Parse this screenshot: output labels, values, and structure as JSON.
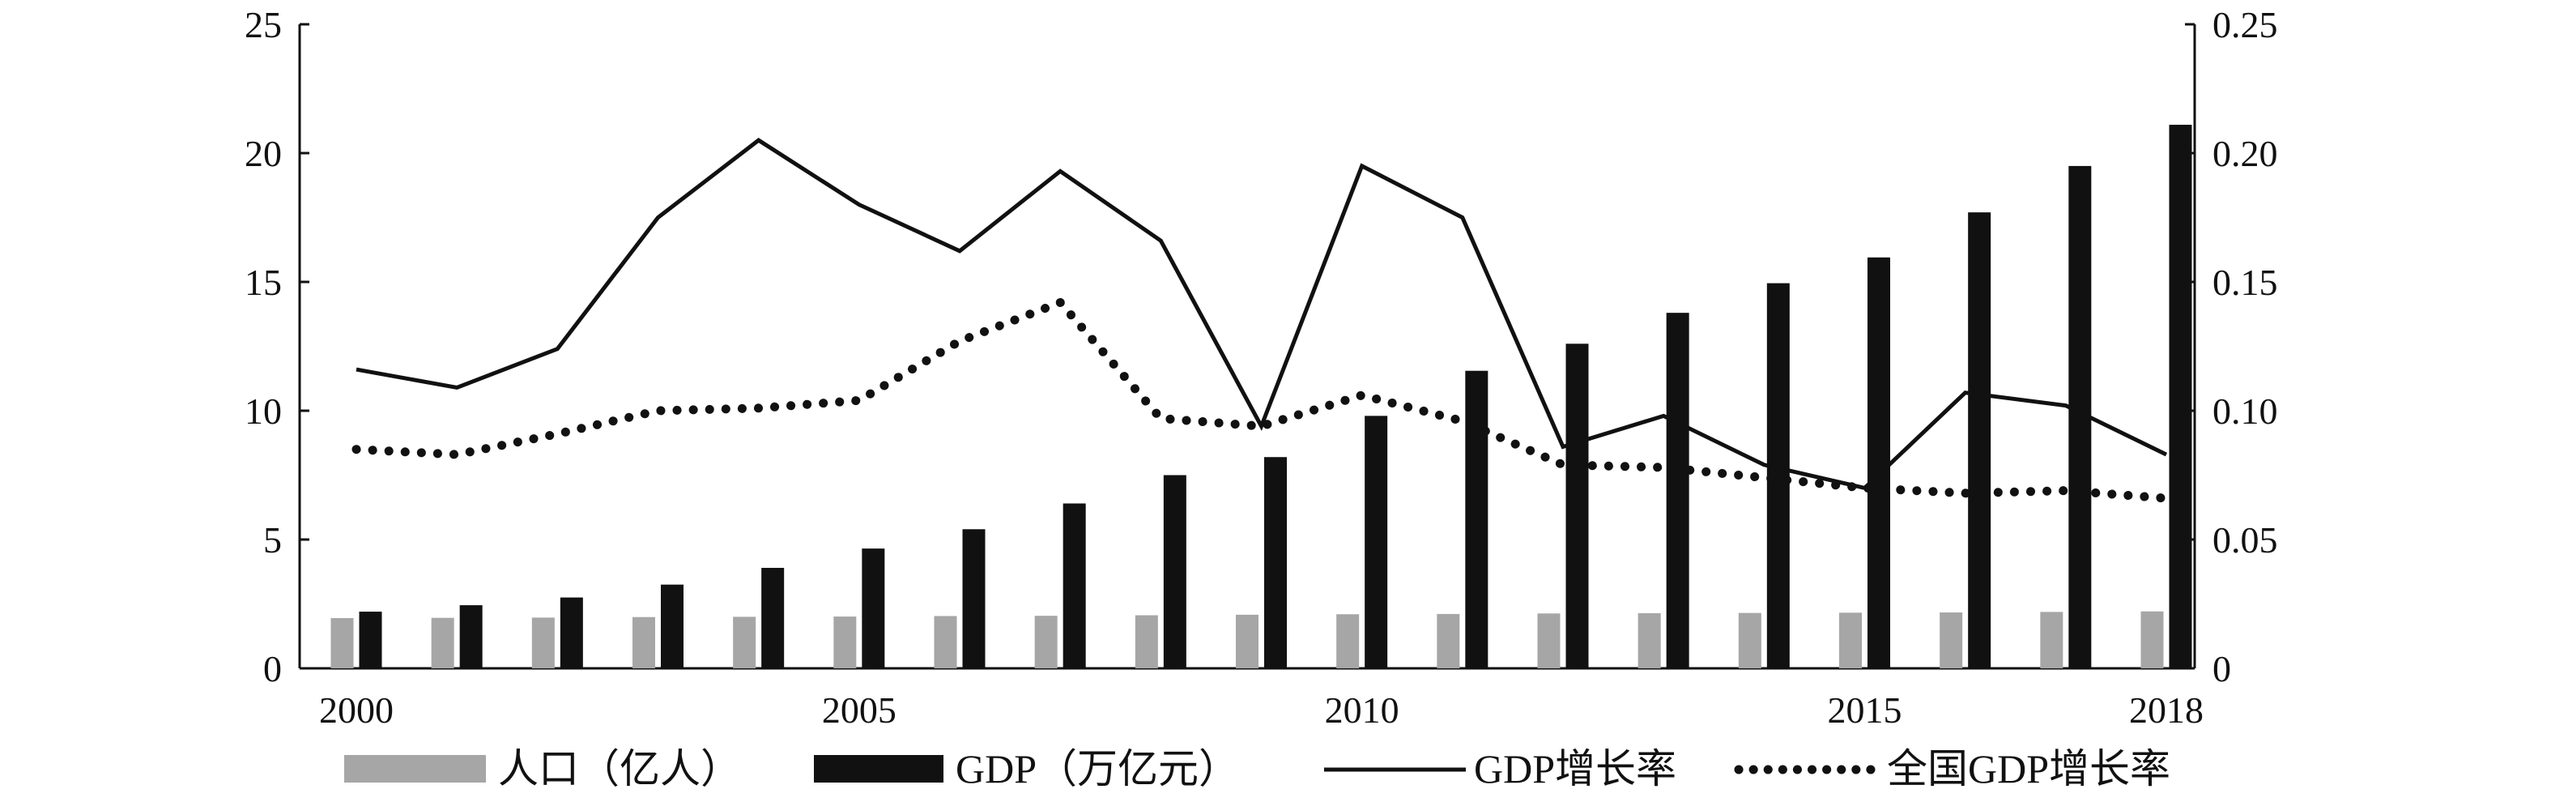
{
  "chart_data": {
    "type": "bar",
    "x": [
      2000,
      2001,
      2002,
      2003,
      2004,
      2005,
      2006,
      2007,
      2008,
      2009,
      2010,
      2011,
      2012,
      2013,
      2014,
      2015,
      2016,
      2017,
      2018
    ],
    "x_ticks": [
      "2000",
      "2005",
      "2010",
      "2015",
      "2018"
    ],
    "ylim": [
      0,
      25
    ],
    "y_ticks": [
      "0",
      "5",
      "10",
      "15",
      "20",
      "25"
    ],
    "y2lim": [
      0,
      0.25
    ],
    "y2_ticks": [
      "0",
      "0.05",
      "0.10",
      "0.15",
      "0.20",
      "0.25"
    ],
    "legend_position": "bottom",
    "grid": false,
    "series": [
      {
        "name": "人口（亿人）",
        "kind": "bar",
        "axis": "left",
        "color": "#a6a6a6",
        "values": [
          1.95,
          1.96,
          1.97,
          1.99,
          2.0,
          2.01,
          2.03,
          2.04,
          2.06,
          2.08,
          2.1,
          2.11,
          2.13,
          2.14,
          2.15,
          2.16,
          2.17,
          2.19,
          2.21
        ]
      },
      {
        "name": "GDP（万亿元）",
        "kind": "bar",
        "axis": "left",
        "color": "#111111",
        "values": [
          2.2,
          2.45,
          2.75,
          3.25,
          3.9,
          4.65,
          5.4,
          6.4,
          7.5,
          8.2,
          9.8,
          11.55,
          12.6,
          13.8,
          14.95,
          15.95,
          17.7,
          19.5,
          21.1
        ]
      },
      {
        "name": "GDP增长率",
        "kind": "line",
        "axis": "right",
        "color": "#111111",
        "style": "solid",
        "values": [
          0.116,
          0.109,
          0.124,
          0.175,
          0.205,
          0.18,
          0.162,
          0.193,
          0.166,
          0.094,
          0.195,
          0.175,
          0.086,
          0.098,
          0.079,
          0.07,
          0.107,
          0.102,
          0.083
        ]
      },
      {
        "name": "全国GDP增长率",
        "kind": "line",
        "axis": "right",
        "color": "#111111",
        "style": "dotted",
        "values": [
          0.085,
          0.083,
          0.091,
          0.1,
          0.101,
          0.104,
          0.127,
          0.142,
          0.097,
          0.094,
          0.106,
          0.096,
          0.079,
          0.078,
          0.074,
          0.07,
          0.068,
          0.069,
          0.066
        ]
      }
    ]
  }
}
